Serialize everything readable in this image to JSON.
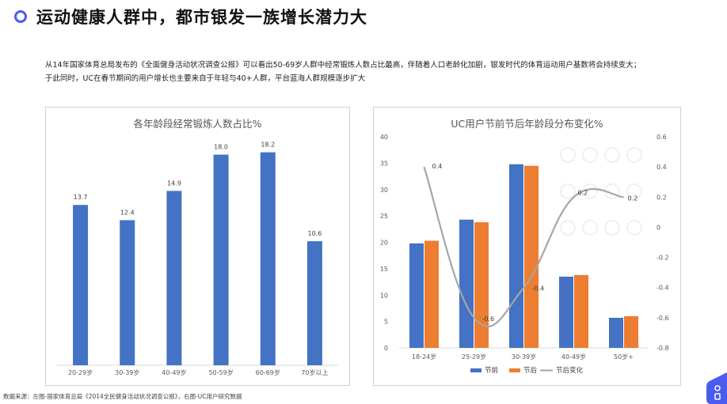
{
  "header": {
    "title": "运动健康人群中，都市银发一族增长潜力大"
  },
  "description": {
    "line1": "从14年国家体育总局发布的《全面健身活动状况调查公报》可以看出50-69岁人群中经常锻炼人数占比最高，伴随着人口老龄化加剧，银发时代的体育运动用户基数将会持续变大；",
    "line2": "于此同时，UC在春节期间的用户增长也主要来自于年轻与40+人群，平台蓝海人群规模逐步扩大"
  },
  "source": "数据来源：左图-国家体育总局《2014全民健身活动状况调查公报》，右图-UC用户研究数据",
  "colors": {
    "blue": "#4472c4",
    "orange": "#ed7d31",
    "gray": "#a6a6a6",
    "accent": "#4a5cf0"
  },
  "chart_data": [
    {
      "type": "bar",
      "title": "各年龄段经常锻炼人数占比%",
      "categories": [
        "20-29岁",
        "30-39岁",
        "40-49岁",
        "50-59岁",
        "60-69岁",
        "70岁以上"
      ],
      "values": [
        13.7,
        12.4,
        14.9,
        18.0,
        18.2,
        10.6
      ],
      "value_labels": [
        "13.7",
        "12.4",
        "14.9",
        "18.0",
        "18.2",
        "10.6"
      ],
      "ylim": [
        0,
        20
      ],
      "grid": false,
      "legend": false
    },
    {
      "type": "bar+line",
      "title": "UC用户节前节后年龄段分布变化%",
      "categories": [
        "18-24岁",
        "25-29岁",
        "30-39岁",
        "40-49岁",
        "50岁+"
      ],
      "series": [
        {
          "name": "节前",
          "type": "bar",
          "axis": "left",
          "values": [
            19.8,
            24.3,
            34.8,
            13.5,
            5.7
          ]
        },
        {
          "name": "节后",
          "type": "bar",
          "axis": "left",
          "values": [
            20.3,
            23.8,
            34.5,
            13.8,
            6.0
          ]
        },
        {
          "name": "节后变化",
          "type": "line",
          "axis": "right",
          "smooth": true,
          "values": [
            0.4,
            -0.6,
            -0.4,
            0.2,
            0.2
          ]
        }
      ],
      "line_labels": [
        "0.4",
        "-0.6",
        "-0.4",
        "0.2",
        "0.2"
      ],
      "y_left": {
        "range": [
          0,
          40
        ],
        "ticks": [
          "0",
          "5",
          "10",
          "15",
          "20",
          "25",
          "30",
          "35",
          "40"
        ]
      },
      "y_right": {
        "range": [
          -0.8,
          0.6
        ],
        "ticks": [
          "-0.8",
          "-0.6",
          "-0.4",
          "-0.2",
          "0",
          "0.2",
          "0.4",
          "0.6"
        ]
      },
      "grid": false,
      "legend": "bottom"
    }
  ]
}
